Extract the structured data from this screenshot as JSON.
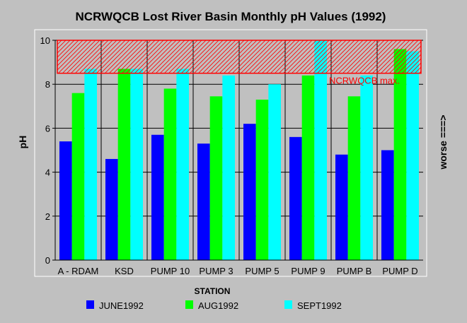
{
  "chart_data": {
    "type": "bar",
    "title": "NCRWQCB Lost River Basin Monthly pH Values (1992)",
    "xlabel": "STATION",
    "ylabel": "pH",
    "right_label": "worse ===>",
    "categories": [
      "A - RDAM",
      "KSD",
      "PUMP 10",
      "PUMP 3",
      "PUMP 5",
      "PUMP 9",
      "PUMP B",
      "PUMP D"
    ],
    "series": [
      {
        "name": "JUNE1992",
        "color": "#0000ff",
        "values": [
          5.4,
          4.6,
          5.7,
          5.3,
          6.2,
          5.6,
          4.8,
          5.0
        ]
      },
      {
        "name": "AUG1992",
        "color": "#00ff00",
        "values": [
          7.6,
          8.7,
          7.8,
          7.45,
          7.3,
          8.4,
          7.45,
          9.6
        ]
      },
      {
        "name": "SEPT1992",
        "color": "#00ffff",
        "values": [
          8.7,
          8.7,
          8.7,
          8.4,
          8.0,
          10.0,
          8.4,
          9.5
        ]
      }
    ],
    "ylim": [
      0,
      10
    ],
    "yticks": [
      "0",
      "2",
      "4",
      "6",
      "8",
      "10"
    ],
    "grid": true,
    "legend_position": "bottom",
    "reference_band": {
      "label": "NCRWQCB max.",
      "from": 8.5,
      "to": 10,
      "color": "#ff0000"
    }
  }
}
